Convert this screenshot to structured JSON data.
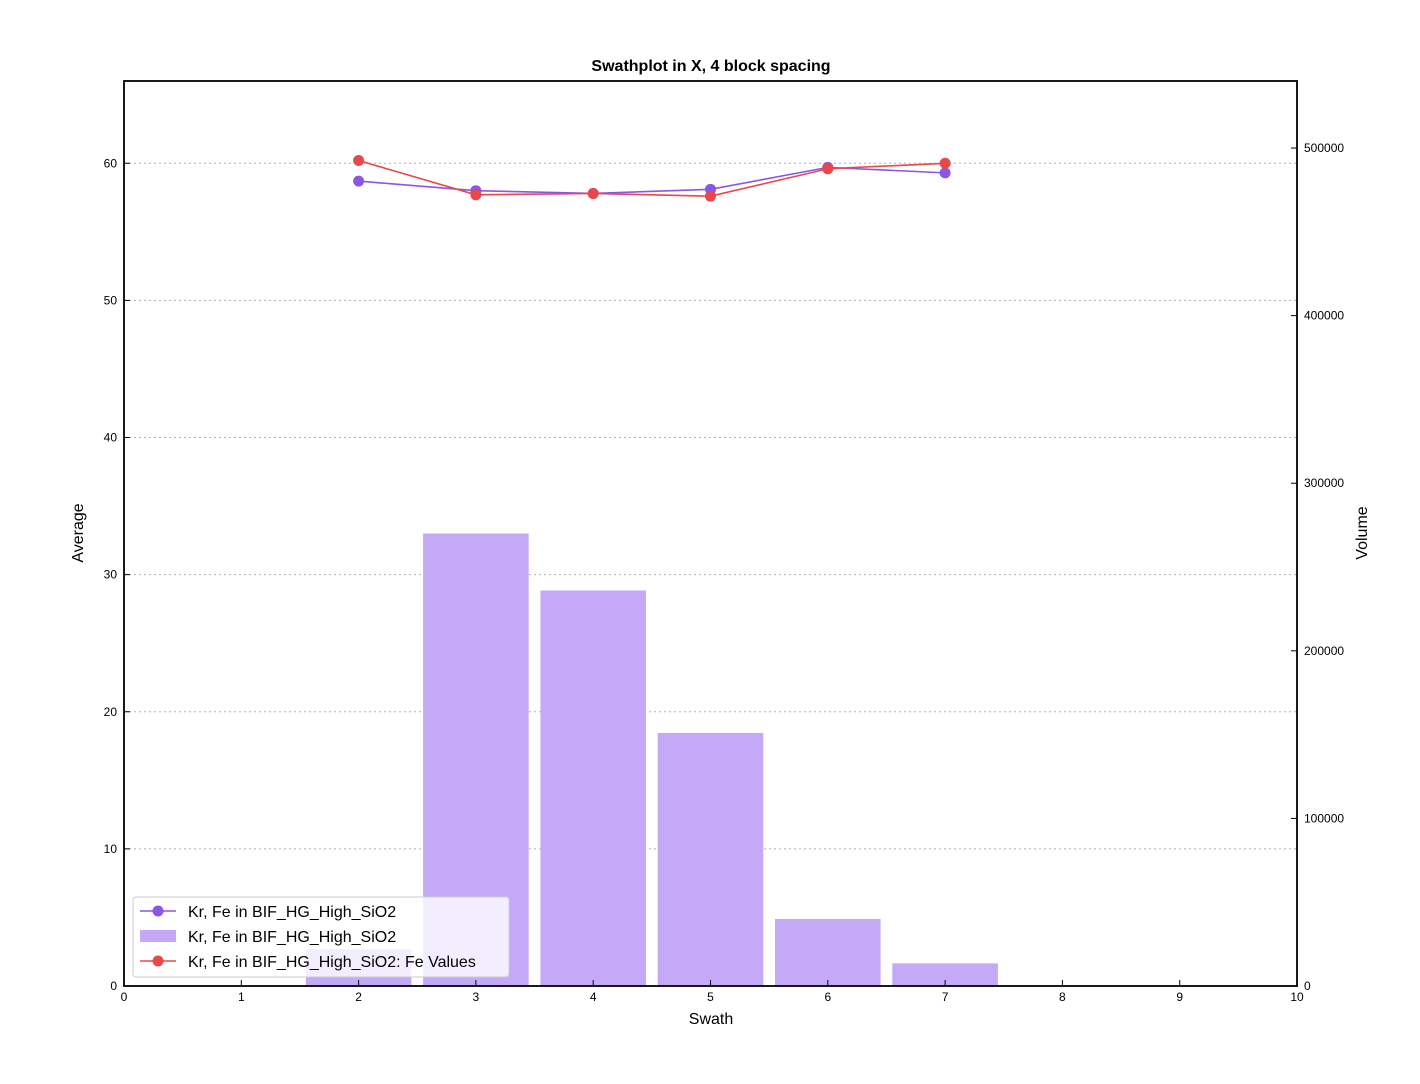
{
  "chart_data": {
    "type": "bar+line",
    "title": "Swathplot in X, 4 block spacing",
    "xlabel": "Swath",
    "ylabel_left": "Average",
    "ylabel_right": "Volume",
    "xlim": [
      0,
      10
    ],
    "ylim_left": [
      0,
      66
    ],
    "ylim_right": [
      0,
      540000
    ],
    "x_ticks": [
      "0",
      "1",
      "2",
      "3",
      "4",
      "5",
      "6",
      "7",
      "8",
      "9",
      "10"
    ],
    "y_left_ticks": [
      "0",
      "10",
      "20",
      "30",
      "40",
      "50",
      "60"
    ],
    "y_right_ticks": [
      "0",
      "100000",
      "200000",
      "300000",
      "400000",
      "500000"
    ],
    "grid": "horizontal dotted (left axis)",
    "legend_position": "lower-left",
    "bars": {
      "name": "Kr, Fe in BIF_HG_High_SiO2",
      "color": "#c4a9f7",
      "x": [
        2,
        3,
        4,
        5,
        6,
        7
      ],
      "values": [
        22000,
        270000,
        236000,
        151000,
        40000,
        13500
      ]
    },
    "series": [
      {
        "name": "Kr, Fe in BIF_HG_High_SiO2",
        "color": "#8b55e6",
        "x": [
          2,
          3,
          4,
          5,
          6,
          7
        ],
        "values": [
          58.7,
          58.0,
          57.8,
          58.1,
          59.7,
          59.3
        ]
      },
      {
        "name": "Kr, Fe in BIF_HG_High_SiO2: Fe Values",
        "color": "#e8484a",
        "x": [
          2,
          3,
          4,
          5,
          6,
          7
        ],
        "values": [
          60.2,
          57.7,
          57.8,
          57.6,
          59.6,
          60.0
        ]
      }
    ],
    "legend": [
      {
        "label": "Kr, Fe in BIF_HG_High_SiO2",
        "kind": "line-marker",
        "color": "#8b55e6"
      },
      {
        "label": "Kr, Fe in BIF_HG_High_SiO2",
        "kind": "bar",
        "color": "#c4a9f7"
      },
      {
        "label": "Kr, Fe in BIF_HG_High_SiO2: Fe Values",
        "kind": "line-marker",
        "color": "#e8484a"
      }
    ]
  }
}
